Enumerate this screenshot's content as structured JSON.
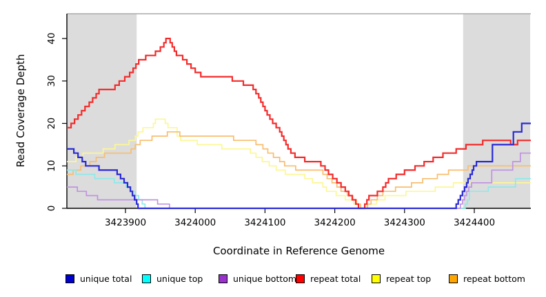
{
  "figure": {
    "x_axis_label": "Coordinate in Reference Genome",
    "y_axis_label": "Read Coverage Depth"
  },
  "legend": {
    "items": [
      {
        "label": "unique total",
        "swatch_color": "#0000cc"
      },
      {
        "label": "unique top",
        "swatch_color": "#00ffff"
      },
      {
        "label": "unique bottom",
        "swatch_color": "#9932cc"
      },
      {
        "label": "repeat total",
        "swatch_color": "#ff0000"
      },
      {
        "label": "repeat top",
        "swatch_color": "#ffff00"
      },
      {
        "label": "repeat bottom",
        "swatch_color": "#ffa500"
      }
    ]
  },
  "chart_data": {
    "type": "line",
    "line_style": "step",
    "title": "",
    "xlabel": "Coordinate in Reference Genome",
    "ylabel": "Read Coverage Depth",
    "xlim": [
      3423816,
      3424481
    ],
    "ylim": [
      0,
      45.8
    ],
    "x_ticks": [
      3423900,
      3424000,
      3424100,
      3424200,
      3424300,
      3424400
    ],
    "y_ticks": [
      0,
      10,
      20,
      30,
      40
    ],
    "grid": false,
    "legend_position": "bottom",
    "background_color": "#ffffff",
    "shaded_region_color": "#dcdcdc",
    "top_boundary_line_color": "#a9a9a9",
    "shaded_regions": [
      {
        "start": 3423816,
        "end": 3423916
      },
      {
        "start": 3424384,
        "end": 3424480
      }
    ],
    "draw_order": [
      "repeat top",
      "repeat bottom",
      "repeat total",
      "unique top",
      "unique bottom",
      "unique total"
    ],
    "series": [
      {
        "name": "unique total",
        "color": "#2828d4",
        "width": 2.2,
        "points": [
          [
            3423816,
            14
          ],
          [
            3423826,
            13
          ],
          [
            3423832,
            12
          ],
          [
            3423838,
            11
          ],
          [
            3423843,
            10
          ],
          [
            3423862,
            9
          ],
          [
            3423888,
            8
          ],
          [
            3423893,
            7
          ],
          [
            3423898,
            6
          ],
          [
            3423903,
            5
          ],
          [
            3423907,
            4
          ],
          [
            3423910,
            3
          ],
          [
            3423913,
            2
          ],
          [
            3423916,
            1
          ],
          [
            3423918,
            0
          ],
          [
            3424374,
            1
          ],
          [
            3424377,
            2
          ],
          [
            3424380,
            3
          ],
          [
            3424383,
            4
          ],
          [
            3424386,
            5
          ],
          [
            3424389,
            6
          ],
          [
            3424391,
            7
          ],
          [
            3424394,
            8
          ],
          [
            3424397,
            9
          ],
          [
            3424399,
            10
          ],
          [
            3424403,
            11
          ],
          [
            3424426,
            15
          ],
          [
            3424456,
            18
          ],
          [
            3424468,
            20
          ],
          [
            3424481,
            20
          ]
        ]
      },
      {
        "name": "unique top",
        "color": "#8ceaea",
        "width": 1.7,
        "points": [
          [
            3423816,
            9
          ],
          [
            3423829,
            8
          ],
          [
            3423856,
            7
          ],
          [
            3423884,
            6
          ],
          [
            3423901,
            5
          ],
          [
            3423908,
            4
          ],
          [
            3423914,
            3
          ],
          [
            3423919,
            2
          ],
          [
            3423924,
            1
          ],
          [
            3423928,
            0
          ],
          [
            3424387,
            1
          ],
          [
            3424390,
            2
          ],
          [
            3424393,
            4
          ],
          [
            3424420,
            5
          ],
          [
            3424459,
            7
          ],
          [
            3424481,
            7
          ]
        ]
      },
      {
        "name": "unique bottom",
        "color": "#c092e2",
        "width": 1.7,
        "points": [
          [
            3423816,
            5
          ],
          [
            3423831,
            4
          ],
          [
            3423844,
            3
          ],
          [
            3423860,
            2
          ],
          [
            3423946,
            1
          ],
          [
            3423963,
            0
          ],
          [
            3424380,
            1
          ],
          [
            3424383,
            2
          ],
          [
            3424386,
            3
          ],
          [
            3424389,
            4
          ],
          [
            3424392,
            5
          ],
          [
            3424396,
            6
          ],
          [
            3424425,
            9
          ],
          [
            3424455,
            11
          ],
          [
            3424466,
            13
          ],
          [
            3424481,
            13
          ]
        ]
      },
      {
        "name": "repeat total",
        "color": "#f32a2a",
        "width": 2.2,
        "points": [
          [
            3423816,
            19
          ],
          [
            3423822,
            20
          ],
          [
            3423827,
            21
          ],
          [
            3423832,
            22
          ],
          [
            3423837,
            23
          ],
          [
            3423842,
            24
          ],
          [
            3423848,
            25
          ],
          [
            3423853,
            26
          ],
          [
            3423858,
            27
          ],
          [
            3423862,
            28
          ],
          [
            3423885,
            29
          ],
          [
            3423891,
            30
          ],
          [
            3423899,
            31
          ],
          [
            3423906,
            32
          ],
          [
            3423911,
            33
          ],
          [
            3423915,
            34
          ],
          [
            3423919,
            35
          ],
          [
            3423929,
            36
          ],
          [
            3423943,
            37
          ],
          [
            3423950,
            38
          ],
          [
            3423955,
            39
          ],
          [
            3423958,
            40
          ],
          [
            3423964,
            39
          ],
          [
            3423967,
            38
          ],
          [
            3423970,
            37
          ],
          [
            3423973,
            36
          ],
          [
            3423982,
            35
          ],
          [
            3423988,
            34
          ],
          [
            3423994,
            33
          ],
          [
            3424000,
            32
          ],
          [
            3424008,
            31
          ],
          [
            3424053,
            30
          ],
          [
            3424069,
            29
          ],
          [
            3424083,
            28
          ],
          [
            3424087,
            27
          ],
          [
            3424091,
            26
          ],
          [
            3424094,
            25
          ],
          [
            3424097,
            24
          ],
          [
            3424100,
            23
          ],
          [
            3424103,
            22
          ],
          [
            3424107,
            21
          ],
          [
            3424111,
            20
          ],
          [
            3424116,
            19
          ],
          [
            3424121,
            18
          ],
          [
            3424124,
            17
          ],
          [
            3424127,
            16
          ],
          [
            3424130,
            15
          ],
          [
            3424133,
            14
          ],
          [
            3424137,
            13
          ],
          [
            3424143,
            12
          ],
          [
            3424157,
            11
          ],
          [
            3424180,
            10
          ],
          [
            3424186,
            9
          ],
          [
            3424191,
            8
          ],
          [
            3424197,
            7
          ],
          [
            3424203,
            6
          ],
          [
            3424209,
            5
          ],
          [
            3424215,
            4
          ],
          [
            3424220,
            3
          ],
          [
            3424225,
            2
          ],
          [
            3424230,
            1
          ],
          [
            3424234,
            0
          ],
          [
            3424243,
            1
          ],
          [
            3424246,
            2
          ],
          [
            3424249,
            3
          ],
          [
            3424261,
            4
          ],
          [
            3424269,
            5
          ],
          [
            3424273,
            6
          ],
          [
            3424277,
            7
          ],
          [
            3424288,
            8
          ],
          [
            3424300,
            9
          ],
          [
            3424315,
            10
          ],
          [
            3424328,
            11
          ],
          [
            3424341,
            12
          ],
          [
            3424355,
            13
          ],
          [
            3424374,
            14
          ],
          [
            3424388,
            15
          ],
          [
            3424412,
            16
          ],
          [
            3424452,
            15
          ],
          [
            3424462,
            16
          ],
          [
            3424481,
            16
          ]
        ]
      },
      {
        "name": "repeat top",
        "color": "#fcf794",
        "width": 1.7,
        "points": [
          [
            3423816,
            11
          ],
          [
            3423829,
            12
          ],
          [
            3423839,
            13
          ],
          [
            3423868,
            14
          ],
          [
            3423885,
            15
          ],
          [
            3423905,
            16
          ],
          [
            3423914,
            17
          ],
          [
            3423918,
            18
          ],
          [
            3423925,
            19
          ],
          [
            3423940,
            20
          ],
          [
            3423943,
            21
          ],
          [
            3423957,
            20
          ],
          [
            3423961,
            19
          ],
          [
            3423974,
            17
          ],
          [
            3423979,
            16
          ],
          [
            3424003,
            15
          ],
          [
            3424038,
            14
          ],
          [
            3424079,
            13
          ],
          [
            3424087,
            12
          ],
          [
            3424096,
            11
          ],
          [
            3424106,
            10
          ],
          [
            3424116,
            9
          ],
          [
            3424129,
            8
          ],
          [
            3424157,
            7
          ],
          [
            3424168,
            6
          ],
          [
            3424183,
            5
          ],
          [
            3424188,
            4
          ],
          [
            3424202,
            3
          ],
          [
            3424215,
            2
          ],
          [
            3424227,
            1
          ],
          [
            3424234,
            0
          ],
          [
            3424246,
            1
          ],
          [
            3424260,
            2
          ],
          [
            3424272,
            3
          ],
          [
            3424302,
            4
          ],
          [
            3424344,
            5
          ],
          [
            3424370,
            6
          ],
          [
            3424481,
            6
          ]
        ]
      },
      {
        "name": "repeat bottom",
        "color": "#f8bd6e",
        "width": 1.7,
        "points": [
          [
            3423816,
            8
          ],
          [
            3423825,
            9
          ],
          [
            3423836,
            10
          ],
          [
            3423849,
            11
          ],
          [
            3423858,
            12
          ],
          [
            3423870,
            13
          ],
          [
            3423908,
            14
          ],
          [
            3423914,
            15
          ],
          [
            3423921,
            16
          ],
          [
            3423938,
            17
          ],
          [
            3423960,
            18
          ],
          [
            3423978,
            17
          ],
          [
            3424055,
            16
          ],
          [
            3424087,
            15
          ],
          [
            3424097,
            14
          ],
          [
            3424104,
            13
          ],
          [
            3424112,
            12
          ],
          [
            3424121,
            11
          ],
          [
            3424128,
            10
          ],
          [
            3424144,
            9
          ],
          [
            3424183,
            8
          ],
          [
            3424189,
            7
          ],
          [
            3424196,
            6
          ],
          [
            3424203,
            5
          ],
          [
            3424209,
            4
          ],
          [
            3424218,
            3
          ],
          [
            3424226,
            2
          ],
          [
            3424231,
            1
          ],
          [
            3424237,
            0
          ],
          [
            3424247,
            1
          ],
          [
            3424252,
            2
          ],
          [
            3424261,
            3
          ],
          [
            3424269,
            4
          ],
          [
            3424287,
            5
          ],
          [
            3424310,
            6
          ],
          [
            3424326,
            7
          ],
          [
            3424347,
            8
          ],
          [
            3424363,
            9
          ],
          [
            3424391,
            10
          ],
          [
            3424481,
            10
          ]
        ]
      }
    ]
  }
}
